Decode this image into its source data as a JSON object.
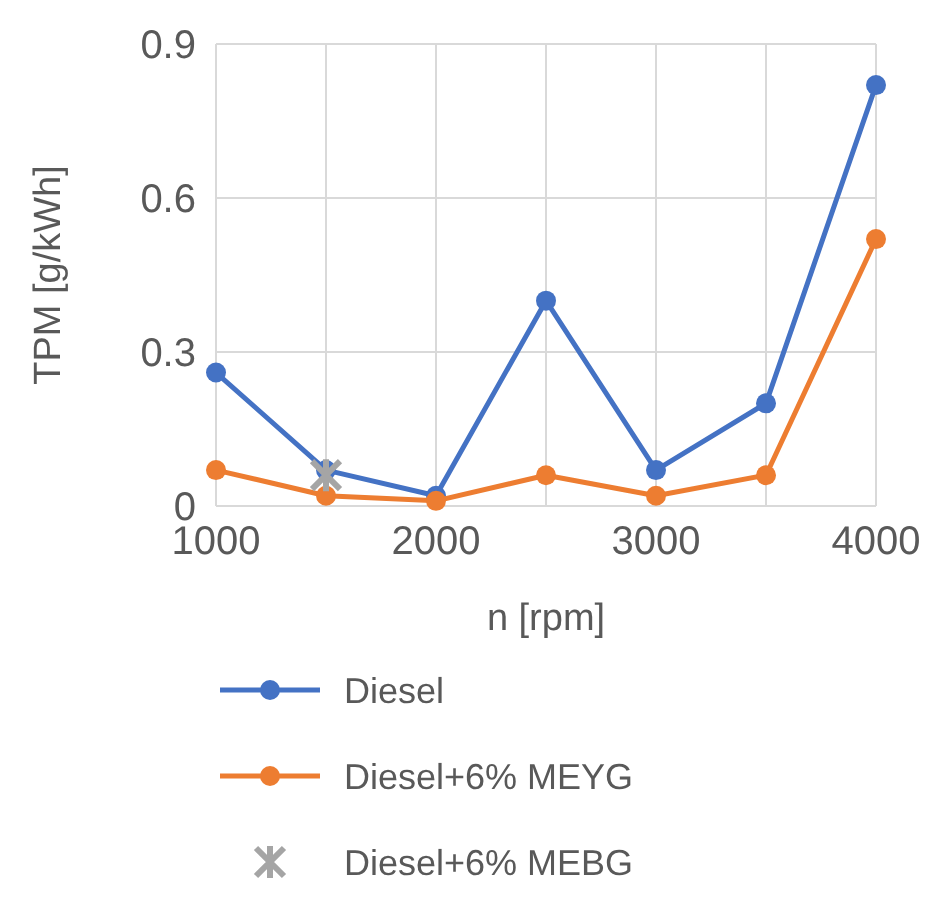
{
  "chart_data": {
    "type": "line",
    "xlabel": "n [rpm]",
    "ylabel": "TPM [g/kWh]",
    "x": [
      1000,
      1500,
      2000,
      2500,
      3000,
      3500,
      4000
    ],
    "xlim": [
      1000,
      4000
    ],
    "xticks": [
      1000,
      {
        "value": 1500,
        "label": null
      },
      2000,
      {
        "value": 2500,
        "label": null
      },
      3000,
      {
        "value": 3500,
        "label": null
      },
      4000
    ],
    "ylim": [
      0,
      0.9
    ],
    "yticks": [
      0,
      0.3,
      0.6,
      0.9
    ],
    "grid": true,
    "legend": "bottom",
    "marker": "circle",
    "line_style": "solid",
    "series": [
      {
        "name": "Diesel",
        "color": "#4472c4",
        "values": [
          0.26,
          0.07,
          0.02,
          0.4,
          0.07,
          0.2,
          0.82
        ]
      },
      {
        "name": "Diesel+6% MEYG",
        "color": "#ed7d31",
        "values": [
          0.07,
          0.02,
          0.01,
          0.06,
          0.02,
          0.06,
          0.52
        ]
      },
      {
        "name": "Diesel+6% MEBG",
        "type": "scatter",
        "marker": "cross",
        "color": "#a5a5a5",
        "x": [
          1500
        ],
        "values": [
          0.06
        ]
      }
    ]
  }
}
